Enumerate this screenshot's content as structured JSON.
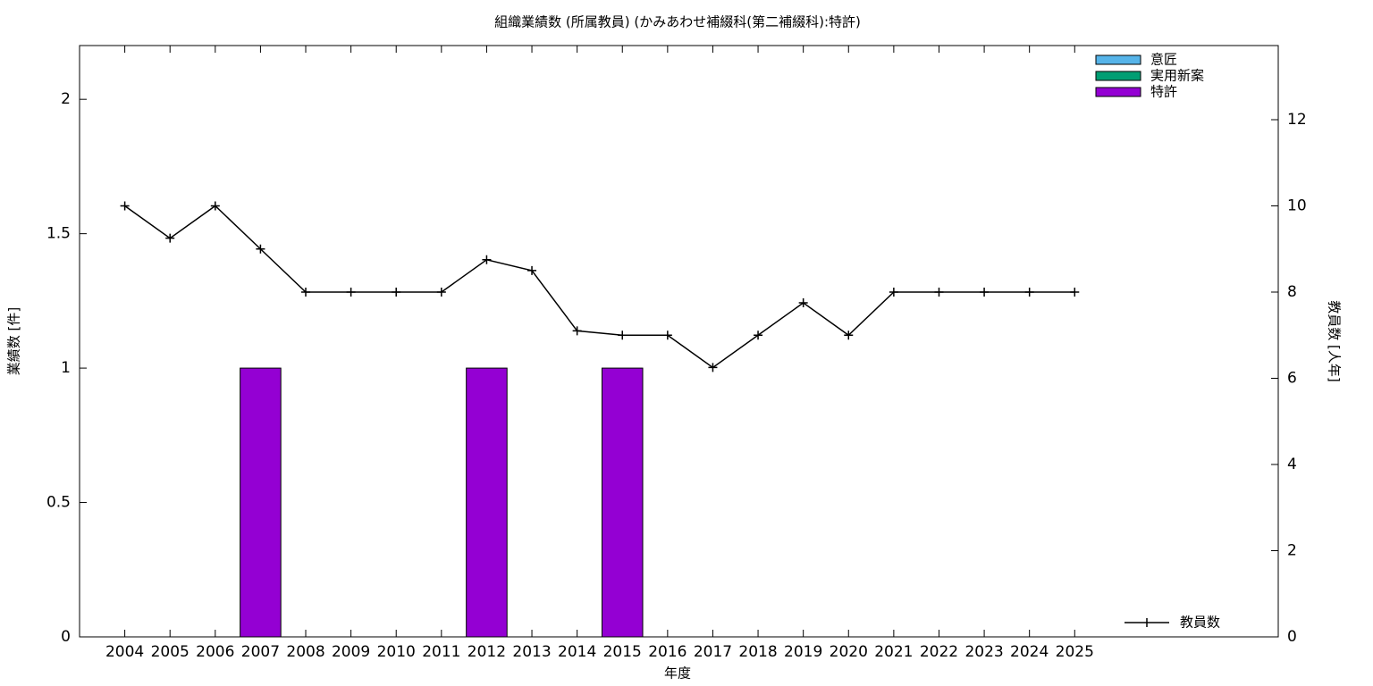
{
  "chart_data": {
    "type": "bar",
    "title": "組織業績数 (所属教員) (かみあわせ補綴科(第二補綴科):特許)",
    "xlabel": "年度",
    "ylabel": "業績数 [件]",
    "y2label": "教員数 [人年]",
    "x": [
      2004,
      2005,
      2006,
      2007,
      2008,
      2009,
      2010,
      2011,
      2012,
      2013,
      2014,
      2015,
      2016,
      2017,
      2018,
      2019,
      2020,
      2021,
      2022,
      2023,
      2024,
      2025
    ],
    "xlim": [
      2003,
      2029.5
    ],
    "xticks": [
      2004,
      2005,
      2006,
      2007,
      2008,
      2009,
      2010,
      2011,
      2012,
      2013,
      2014,
      2015,
      2016,
      2017,
      2018,
      2019,
      2020,
      2021,
      2022,
      2023,
      2024,
      2025
    ],
    "ylim": [
      0,
      2.2
    ],
    "yticks": [
      0,
      0.5,
      1,
      1.5,
      2
    ],
    "y2lim": [
      0,
      13.72
    ],
    "y2ticks": [
      0,
      2,
      4,
      6,
      8,
      10,
      12
    ],
    "stacked": true,
    "legend": "top right",
    "series": [
      {
        "name": "意匠",
        "color": "#56b4e9",
        "values": [
          0,
          0,
          0,
          0,
          0,
          0,
          0,
          0,
          0,
          0,
          0,
          0,
          0,
          0,
          0,
          0,
          0,
          0,
          0,
          0,
          0,
          0
        ]
      },
      {
        "name": "実用新案",
        "color": "#009e73",
        "values": [
          0,
          0,
          0,
          0,
          0,
          0,
          0,
          0,
          0,
          0,
          0,
          0,
          0,
          0,
          0,
          0,
          0,
          0,
          0,
          0,
          0,
          0
        ]
      },
      {
        "name": "特許",
        "color": "#9400d3",
        "values": [
          0,
          0,
          0,
          1,
          0,
          0,
          0,
          0,
          1,
          0,
          0,
          1,
          0,
          0,
          0,
          0,
          0,
          0,
          0,
          0,
          0,
          0
        ]
      },
      {
        "name": "教員数",
        "color": "#000000",
        "type": "line",
        "axis": "y2",
        "values": [
          10,
          9.25,
          10,
          9,
          8,
          8,
          8,
          8,
          8.75,
          8.5,
          7.1,
          7,
          7,
          6.25,
          7,
          7.75,
          7,
          8,
          8,
          8,
          8,
          8
        ]
      }
    ]
  }
}
